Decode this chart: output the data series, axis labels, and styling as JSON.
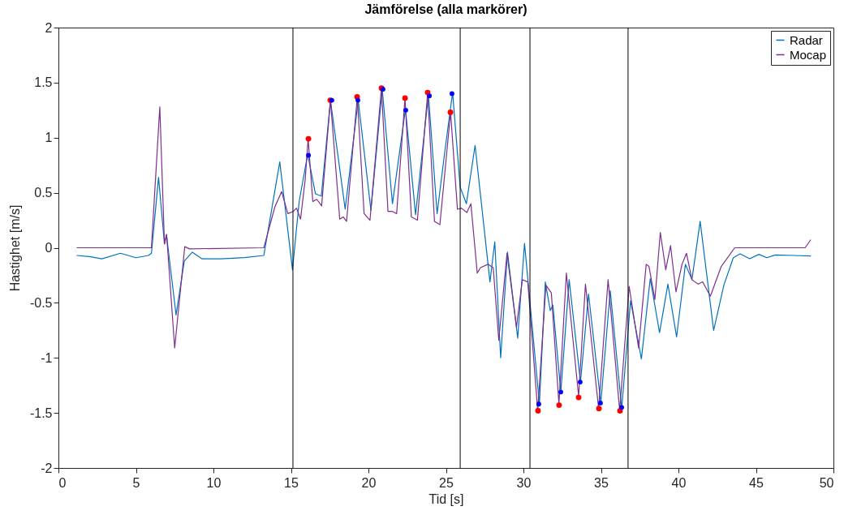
{
  "chart_data": {
    "type": "line",
    "title": "Jämförelse (alla markörer)",
    "xlabel": "Tid [s]",
    "ylabel": "Hastighet [m/s]",
    "xlim": [
      0,
      50
    ],
    "xticks": [
      0,
      5,
      10,
      15,
      20,
      25,
      30,
      35,
      40,
      45,
      50
    ],
    "ylim": [
      -2,
      2
    ],
    "yticks": [
      -2,
      -1.5,
      -1,
      -0.5,
      0,
      0.5,
      1,
      1.5,
      2
    ],
    "grid": false,
    "legend": "top right",
    "line_style": "solid",
    "ref_lines": [
      {
        "axis": "x",
        "value": 15.13,
        "color": "#000000"
      },
      {
        "axis": "x",
        "value": 25.92,
        "color": "#000000"
      },
      {
        "axis": "x",
        "value": 30.42,
        "color": "#000000"
      },
      {
        "axis": "x",
        "value": 36.75,
        "color": "#000000"
      }
    ],
    "series": [
      {
        "name": "Radar",
        "color": "#0072bd",
        "x": [
          1.2,
          2,
          2.8,
          4,
          5,
          5.8,
          6.0,
          6.46,
          6.84,
          6.97,
          7.59,
          8.12,
          8.64,
          9.25,
          10.5,
          12,
          13.25,
          14.28,
          15.1,
          15.53,
          16.08,
          16.58,
          16.96,
          17.55,
          18.5,
          19.34,
          20.16,
          20.89,
          21.55,
          22.39,
          23.04,
          23.87,
          24.43,
          24.96,
          25.43,
          25.92,
          26.32,
          26.88,
          27.84,
          28.15,
          28.53,
          28.97,
          29.63,
          30.07,
          31.03,
          31.41,
          31.73,
          31.9,
          32.41,
          32.95,
          33.68,
          34.2,
          34.99,
          35.6,
          36.34,
          36.91,
          37.61,
          38.18,
          38.78,
          39.32,
          39.88,
          40.45,
          40.87,
          41.4,
          42.27,
          42.93,
          43.54,
          43.98,
          44.59,
          45.2,
          45.69,
          46.25,
          47.5,
          48.52
        ],
        "values": [
          -0.07,
          -0.08,
          -0.1,
          -0.05,
          -0.09,
          -0.07,
          -0.05,
          0.64,
          0.035,
          0.12,
          -0.61,
          -0.12,
          -0.04,
          -0.1,
          -0.1,
          -0.09,
          -0.07,
          0.78,
          -0.2,
          0.42,
          0.85,
          0.49,
          0.47,
          1.34,
          0.35,
          1.34,
          0.34,
          1.44,
          0.4,
          1.26,
          0.3,
          1.39,
          0.31,
          0.91,
          1.41,
          0.55,
          0.4,
          0.93,
          -0.31,
          0.055,
          -1.0,
          -0.04,
          -0.82,
          0.04,
          -1.42,
          -0.31,
          -0.57,
          -0.52,
          -1.31,
          -0.29,
          -1.22,
          -0.42,
          -1.41,
          -0.39,
          -1.46,
          -0.48,
          -1.01,
          -0.28,
          -0.77,
          -0.33,
          -0.81,
          -0.15,
          -0.29,
          0.24,
          -0.75,
          -0.34,
          -0.09,
          -0.055,
          -0.1,
          -0.06,
          -0.09,
          -0.065,
          -0.07,
          -0.075
        ]
      },
      {
        "name": "Mocap",
        "color": "#7e2f8e",
        "x": [
          1.2,
          6.0,
          6.54,
          6.84,
          6.98,
          7.5,
          8.15,
          8.46,
          13.25,
          13.96,
          14.4,
          14.8,
          15.15,
          15.36,
          15.62,
          15.92,
          16.11,
          16.41,
          16.67,
          16.98,
          17.55,
          18.15,
          18.37,
          18.59,
          19.28,
          19.72,
          20.1,
          20.84,
          21.26,
          21.55,
          21.82,
          22.36,
          22.77,
          23.16,
          23.82,
          24.26,
          24.61,
          25.3,
          25.74,
          26.0,
          26.35,
          26.61,
          27.02,
          27.23,
          27.71,
          28.05,
          28.41,
          28.94,
          29.55,
          29.93,
          30.28,
          30.92,
          31.45,
          31.8,
          32.29,
          32.77,
          33.56,
          34.0,
          34.85,
          35.46,
          36.21,
          36.82,
          37.43,
          37.92,
          38.1,
          38.48,
          38.83,
          39.18,
          39.49,
          39.84,
          40.23,
          40.52,
          40.87,
          41.27,
          41.56,
          42.06,
          42.76,
          43.63,
          48.17,
          48.52
        ],
        "values": [
          0.0,
          0.0,
          1.28,
          0.035,
          0.12,
          -0.91,
          0.01,
          -0.01,
          0.0,
          0.37,
          0.51,
          0.31,
          0.33,
          0.36,
          0.26,
          0.62,
          0.99,
          0.42,
          0.44,
          0.38,
          1.34,
          0.26,
          0.28,
          0.24,
          1.37,
          0.31,
          0.25,
          1.45,
          0.33,
          0.33,
          0.31,
          1.36,
          0.28,
          0.25,
          1.41,
          0.24,
          0.21,
          1.23,
          0.35,
          0.36,
          0.32,
          0.4,
          -0.23,
          -0.18,
          -0.15,
          -0.18,
          -0.84,
          -0.05,
          -0.72,
          -0.29,
          -0.31,
          -1.48,
          -0.34,
          -0.41,
          -1.42,
          -0.23,
          -1.35,
          -0.33,
          -1.46,
          -0.29,
          -1.48,
          -0.35,
          -0.91,
          -0.15,
          -0.17,
          -0.47,
          0.14,
          -0.2,
          0.02,
          -0.4,
          -0.15,
          -0.05,
          -0.29,
          -0.33,
          -0.31,
          -0.44,
          -0.17,
          0.0,
          0.0,
          0.07
        ]
      },
      {
        "type": "scatter",
        "marker": "circle",
        "color": "#ff0000",
        "x": [
          16.13,
          17.54,
          19.27,
          20.84,
          22.36,
          23.82,
          25.29,
          30.94,
          32.3,
          33.56,
          34.87,
          36.23
        ],
        "values": [
          0.99,
          1.34,
          1.37,
          1.45,
          1.36,
          1.41,
          1.23,
          -1.48,
          -1.43,
          -1.36,
          -1.46,
          -1.48
        ]
      },
      {
        "type": "scatter",
        "marker": "circle",
        "color": "#0000ff",
        "x": [
          16.13,
          17.64,
          19.32,
          20.94,
          22.41,
          23.93,
          25.39,
          30.99,
          32.41,
          33.66,
          34.97,
          36.34
        ],
        "values": [
          0.84,
          1.34,
          1.34,
          1.44,
          1.25,
          1.38,
          1.4,
          -1.42,
          -1.31,
          -1.22,
          -1.41,
          -1.45
        ]
      }
    ]
  }
}
